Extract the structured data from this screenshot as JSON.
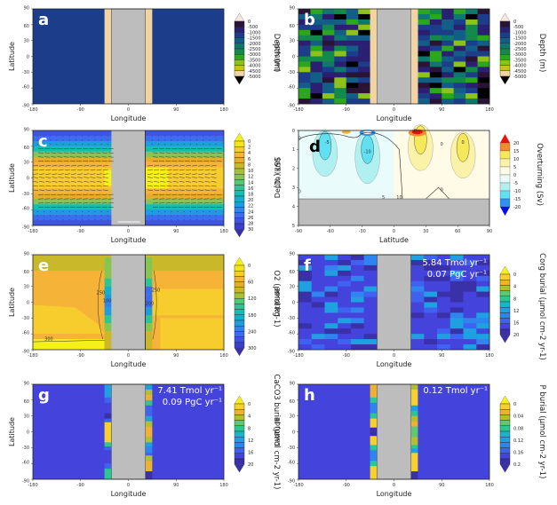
{
  "figure": {
    "panels_label_colors": {
      "light": "#ffffff",
      "dark": "#000000"
    }
  },
  "chart_data": [
    {
      "id": "a",
      "type": "heatmap",
      "panel_label": "a",
      "xlabel": "Longitude",
      "ylabel": "Latitude",
      "xticks": [
        "-180",
        "-90",
        "0",
        "90",
        "180"
      ],
      "yticks": [
        "90",
        "60",
        "30",
        "0",
        "-30",
        "-60",
        "-90"
      ],
      "xlim": [
        -180,
        180
      ],
      "ylim": [
        -90,
        90
      ],
      "colorbar": {
        "label": "Depth (m)",
        "ticks": [
          "0",
          "-500",
          "-1000",
          "-1500",
          "-2000",
          "-2500",
          "-3000",
          "-3500",
          "-4000",
          "-4500",
          "-5000"
        ],
        "colors": [
          "#f2d3a2",
          "#c4c41a",
          "#8cc21a",
          "#2ba71e",
          "#13894c",
          "#0f786e",
          "#135e86",
          "#1b3d8a",
          "#2a1f70",
          "#2a1436"
        ],
        "extend_top": "#f5e6dc",
        "extend_bottom": "#000000"
      },
      "description": "Uniform ocean depth of 3500-4000 m with a continent (gray) centered at 0 longitude flanked by shallow shelves",
      "ocean_value": -3750,
      "shelf_value": -250,
      "land_lon_range": [
        -32,
        32
      ],
      "shelf_lon_range": [
        [
          -45,
          -32
        ],
        [
          32,
          45
        ]
      ]
    },
    {
      "id": "b",
      "type": "heatmap",
      "panel_label": "b",
      "xlabel": "Longitude",
      "ylabel": "Latitude",
      "xticks": [
        "-180",
        "-90",
        "0",
        "90",
        "180"
      ],
      "yticks": [
        "90",
        "60",
        "30",
        "0",
        "-30",
        "-60",
        "-90"
      ],
      "xlim": [
        -180,
        180
      ],
      "ylim": [
        -90,
        90
      ],
      "colorbar": {
        "label": "Depth (m)",
        "ticks": [
          "0",
          "-500",
          "-1000",
          "-1500",
          "-2000",
          "-2500",
          "-3000",
          "-3500",
          "-4000",
          "-4500",
          "-5000"
        ],
        "colors": [
          "#f2d3a2",
          "#c4c41a",
          "#8cc21a",
          "#2ba71e",
          "#13894c",
          "#0f786e",
          "#135e86",
          "#1b3d8a",
          "#2a1f70",
          "#2a1436"
        ],
        "extend_top": "#f5e6dc",
        "extend_bottom": "#000000"
      },
      "description": "Randomized bathymetry between -2000 and -5000 m, with same continent and shelves"
    },
    {
      "id": "c",
      "type": "heatmap",
      "panel_label": "c",
      "xlabel": "Longitude",
      "ylabel": "Latitude",
      "xticks": [
        "-180",
        "-90",
        "0",
        "90",
        "180"
      ],
      "yticks": [
        "90",
        "60",
        "30",
        "0",
        "-30",
        "-60",
        "-90"
      ],
      "xlim": [
        -180,
        180
      ],
      "ylim": [
        -90,
        90
      ],
      "colorbar": {
        "label": "SST (°C)",
        "ticks": [
          "0",
          "2",
          "4",
          "6",
          "8",
          "10",
          "12",
          "14",
          "16",
          "18",
          "20",
          "22",
          "24",
          "26",
          "28",
          "30"
        ],
        "colors": [
          "#3b3fcc",
          "#3f55e0",
          "#3d6cf0",
          "#2f85f0",
          "#1f9be0",
          "#12b0cc",
          "#13bfb0",
          "#2cc693",
          "#55c873",
          "#85c653",
          "#a8c137",
          "#c9b82a",
          "#e6ac2e",
          "#f5b338",
          "#f7cd2e",
          "#f5e41c"
        ],
        "extend_top": "#f5f01a",
        "extend_bottom": "#3a30a8"
      },
      "description": "Sea surface temperature with wind-stress vectors; warm tropics (~28-30 C), cold poles (~0-4 C)",
      "lat_profile": [
        {
          "lat": 85,
          "value": 2
        },
        {
          "lat": 70,
          "value": 6
        },
        {
          "lat": 60,
          "value": 10
        },
        {
          "lat": 50,
          "value": 16
        },
        {
          "lat": 40,
          "value": 22
        },
        {
          "lat": 30,
          "value": 26
        },
        {
          "lat": 20,
          "value": 28
        },
        {
          "lat": 10,
          "value": 29
        },
        {
          "lat": 0,
          "value": 30
        },
        {
          "lat": -10,
          "value": 29
        },
        {
          "lat": -20,
          "value": 28
        },
        {
          "lat": -30,
          "value": 26
        },
        {
          "lat": -40,
          "value": 22
        },
        {
          "lat": -50,
          "value": 16
        },
        {
          "lat": -60,
          "value": 10
        },
        {
          "lat": -70,
          "value": 6
        },
        {
          "lat": -85,
          "value": 2
        }
      ]
    },
    {
      "id": "d",
      "type": "contour",
      "panel_label": "d",
      "xlabel": "Latitude",
      "ylabel": "Depth (km)",
      "xticks": [
        "-90",
        "-60",
        "-30",
        "0",
        "30",
        "60",
        "90"
      ],
      "yticks": [
        "0",
        "1",
        "2",
        "3",
        "4",
        "5"
      ],
      "xlim": [
        -90,
        90
      ],
      "ylim": [
        0,
        5
      ],
      "seafloor_depth_km": 3.6,
      "colorbar": {
        "label": "Overturning (Sv)",
        "ticks": [
          "20",
          "15",
          "10",
          "5",
          "0",
          "-5",
          "-10",
          "-15",
          "-20"
        ],
        "colors": [
          "#f08c30",
          "#f5e85a",
          "#faf2a8",
          "#fffbe6",
          "#eafbfb",
          "#b0f0f0",
          "#60e0f0",
          "#3090f0"
        ],
        "extend_top": "#e81010",
        "extend_bottom": "#0010e0"
      },
      "contour_labels": [
        "-5",
        "-10",
        "0",
        "5",
        "10",
        "0",
        "0",
        "0",
        "0",
        "0"
      ],
      "cells": [
        {
          "sign": "negative",
          "center_lat": -65,
          "center_depth_km": 0.8,
          "value": -10
        },
        {
          "sign": "negative",
          "center_lat": -25,
          "center_depth_km": 1.0,
          "value": -10
        },
        {
          "sign": "positive",
          "center_lat": 25,
          "center_depth_km": 0.5,
          "value": 20
        },
        {
          "sign": "positive",
          "center_lat": 65,
          "center_depth_km": 0.9,
          "value": 10
        }
      ]
    },
    {
      "id": "e",
      "type": "heatmap",
      "panel_label": "e",
      "xlabel": "Longitude",
      "ylabel": "Latitude",
      "xticks": [
        "-180",
        "-90",
        "0",
        "90",
        "180"
      ],
      "yticks": [
        "90",
        "60",
        "30",
        "0",
        "-30",
        "-60",
        "-90"
      ],
      "xlim": [
        -180,
        180
      ],
      "ylim": [
        -90,
        90
      ],
      "colorbar": {
        "label": "O2 (µmol kg-1)",
        "ticks": [
          "0",
          "60",
          "120",
          "180",
          "240",
          "300"
        ],
        "colors": [
          "#3b3fcc",
          "#3f55e0",
          "#3d6cf0",
          "#2f85f0",
          "#1f9be0",
          "#12b0cc",
          "#13bfb0",
          "#2cc693",
          "#55c873",
          "#a8c137",
          "#c9b82a",
          "#e6ac2e",
          "#f5b338",
          "#f7cd2e",
          "#f5e41c"
        ],
        "extend_top": "#f5f01a",
        "extend_bottom": "#3a30a8"
      },
      "contour_labels": [
        "250",
        "100",
        "250",
        "100",
        "300"
      ],
      "description": "Bottom-water oxygen, high (~250-300) in open ocean, low (~60-100) along continental margins"
    },
    {
      "id": "f",
      "type": "heatmap",
      "panel_label": "f",
      "xlabel": "Longitude",
      "ylabel": "Latitude",
      "xticks": [
        "-180",
        "-90",
        "0",
        "90",
        "180"
      ],
      "yticks": [
        "90",
        "60",
        "30",
        "0",
        "-30",
        "-60",
        "-90"
      ],
      "xlim": [
        -180,
        180
      ],
      "ylim": [
        -90,
        90
      ],
      "annotation": [
        "5.84 Tmol yr⁻¹",
        "0.07 PgC yr⁻¹"
      ],
      "colorbar": {
        "label": "Corg burial (µmol cm-2 yr-1)",
        "ticks": [
          "0",
          "4",
          "8",
          "12",
          "16",
          "20"
        ],
        "colors": [
          "#3a30a8",
          "#4444dd",
          "#3f62f0",
          "#2f85f0",
          "#1fa0e0",
          "#14b8c8",
          "#2cc693",
          "#60c870",
          "#b0c030",
          "#f0b030",
          "#f7d02e"
        ],
        "extend_top": "#f5f01a",
        "extend_bottom": "#3a30a8"
      },
      "description": "Organic carbon burial mostly 0-4, patches up to ~10"
    },
    {
      "id": "g",
      "type": "heatmap",
      "panel_label": "g",
      "xlabel": "Longitude",
      "ylabel": "Latitude",
      "xticks": [
        "-180",
        "-90",
        "0",
        "90",
        "180"
      ],
      "yticks": [
        "90",
        "60",
        "30",
        "0",
        "-30",
        "-60",
        "-90"
      ],
      "xlim": [
        -180,
        180
      ],
      "ylim": [
        -90,
        90
      ],
      "annotation": [
        "7.41 Tmol yr⁻¹",
        "0.09 PgC yr⁻¹"
      ],
      "colorbar": {
        "label": "CaCO3 burial (µmol cm-2 yr-1)",
        "ticks": [
          "0",
          "4",
          "8",
          "12",
          "16",
          "20"
        ],
        "colors": [
          "#3a30a8",
          "#4444dd",
          "#3f62f0",
          "#2f85f0",
          "#1fa0e0",
          "#14b8c8",
          "#2cc693",
          "#60c870",
          "#b0c030",
          "#f0b030",
          "#f7d02e"
        ],
        "extend_top": "#f5f01a",
        "extend_bottom": "#3a30a8"
      },
      "description": "Carbonate burial confined to shelves adjacent to continent; open ocean ~0"
    },
    {
      "id": "h",
      "type": "heatmap",
      "panel_label": "h",
      "xlabel": "Longitude",
      "ylabel": "Latitude",
      "xticks": [
        "-180",
        "-90",
        "0",
        "90",
        "180"
      ],
      "yticks": [
        "90",
        "60",
        "30",
        "0",
        "-30",
        "-60",
        "-90"
      ],
      "xlim": [
        -180,
        180
      ],
      "ylim": [
        -90,
        90
      ],
      "annotation": [
        "0.12 Tmol yr⁻¹"
      ],
      "colorbar": {
        "label": "P burial (µmol cm-2 yr-1)",
        "ticks": [
          "0",
          "0.04",
          "0.08",
          "0.12",
          "0.16",
          "0.2"
        ],
        "colors": [
          "#3a30a8",
          "#4444dd",
          "#3f62f0",
          "#2f85f0",
          "#1fa0e0",
          "#14b8c8",
          "#2cc693",
          "#60c870",
          "#b0c030",
          "#f0b030",
          "#f7d02e"
        ],
        "extend_top": "#f5f01a",
        "extend_bottom": "#3a30a8"
      },
      "description": "Phosphorus burial confined to shelves adjacent to continent"
    }
  ],
  "shelf_profiles": {
    "g_west": [
      {
        "lat_top": 90,
        "lat_bot": 65,
        "value": 9
      },
      {
        "lat_top": 65,
        "lat_bot": 55,
        "value": 5
      },
      {
        "lat_top": 55,
        "lat_bot": 35,
        "value": 3
      },
      {
        "lat_top": 35,
        "lat_bot": 25,
        "value": 1
      },
      {
        "lat_top": 25,
        "lat_bot": 18,
        "value": 5
      },
      {
        "lat_top": 18,
        "lat_bot": -20,
        "value": 21
      },
      {
        "lat_top": -20,
        "lat_bot": -28,
        "value": 13
      },
      {
        "lat_top": -28,
        "lat_bot": -35,
        "value": 5
      },
      {
        "lat_top": -35,
        "lat_bot": -60,
        "value": 3
      },
      {
        "lat_top": -60,
        "lat_bot": -70,
        "value": 5
      },
      {
        "lat_top": -70,
        "lat_bot": -90,
        "value": 13
      }
    ],
    "g_east": [
      {
        "lat_top": 90,
        "lat_bot": 80,
        "value": 9
      },
      {
        "lat_top": 80,
        "lat_bot": 70,
        "value": 16
      },
      {
        "lat_top": 70,
        "lat_bot": 60,
        "value": 18
      },
      {
        "lat_top": 60,
        "lat_bot": 50,
        "value": 13
      },
      {
        "lat_top": 50,
        "lat_bot": 30,
        "value": 5
      },
      {
        "lat_top": 30,
        "lat_bot": 20,
        "value": 9
      },
      {
        "lat_top": 20,
        "lat_bot": 10,
        "value": 16
      },
      {
        "lat_top": 10,
        "lat_bot": -10,
        "value": 18
      },
      {
        "lat_top": -10,
        "lat_bot": -20,
        "value": 16
      },
      {
        "lat_top": -20,
        "lat_bot": -28,
        "value": 9
      },
      {
        "lat_top": -28,
        "lat_bot": -40,
        "value": 6
      },
      {
        "lat_top": -40,
        "lat_bot": -45,
        "value": 4
      },
      {
        "lat_top": -45,
        "lat_bot": -55,
        "value": 16
      },
      {
        "lat_top": -55,
        "lat_bot": -75,
        "value": 19
      },
      {
        "lat_top": -75,
        "lat_bot": -90,
        "value": 0
      }
    ],
    "h_west": [
      {
        "lat_top": 90,
        "lat_bot": 65,
        "value": 0.19
      },
      {
        "lat_top": 65,
        "lat_bot": 55,
        "value": 0.13
      },
      {
        "lat_top": 55,
        "lat_bot": 35,
        "value": 0.07
      },
      {
        "lat_top": 35,
        "lat_bot": 25,
        "value": 0.13
      },
      {
        "lat_top": 25,
        "lat_bot": 8,
        "value": 0.21
      },
      {
        "lat_top": 8,
        "lat_bot": -8,
        "value": 0.0
      },
      {
        "lat_top": -8,
        "lat_bot": -25,
        "value": 0.21
      },
      {
        "lat_top": -25,
        "lat_bot": -35,
        "value": 0.13
      },
      {
        "lat_top": -35,
        "lat_bot": -55,
        "value": 0.07
      },
      {
        "lat_top": -55,
        "lat_bot": -65,
        "value": 0.13
      },
      {
        "lat_top": -65,
        "lat_bot": -90,
        "value": 0.21
      }
    ],
    "h_east": [
      {
        "lat_top": 90,
        "lat_bot": 80,
        "value": 0.17
      },
      {
        "lat_top": 80,
        "lat_bot": 50,
        "value": 0.21
      },
      {
        "lat_top": 50,
        "lat_bot": 40,
        "value": 0.09
      },
      {
        "lat_top": 40,
        "lat_bot": 30,
        "value": 0.13
      },
      {
        "lat_top": 30,
        "lat_bot": 20,
        "value": 0.17
      },
      {
        "lat_top": 20,
        "lat_bot": 10,
        "value": 0.19
      },
      {
        "lat_top": 10,
        "lat_bot": -10,
        "value": 0.15
      },
      {
        "lat_top": -10,
        "lat_bot": -25,
        "value": 0.17
      },
      {
        "lat_top": -25,
        "lat_bot": -32,
        "value": 0.13
      },
      {
        "lat_top": -32,
        "lat_bot": -40,
        "value": 0.09
      },
      {
        "lat_top": -40,
        "lat_bot": -75,
        "value": 0.21
      },
      {
        "lat_top": -75,
        "lat_bot": -90,
        "value": 0.0
      }
    ]
  }
}
